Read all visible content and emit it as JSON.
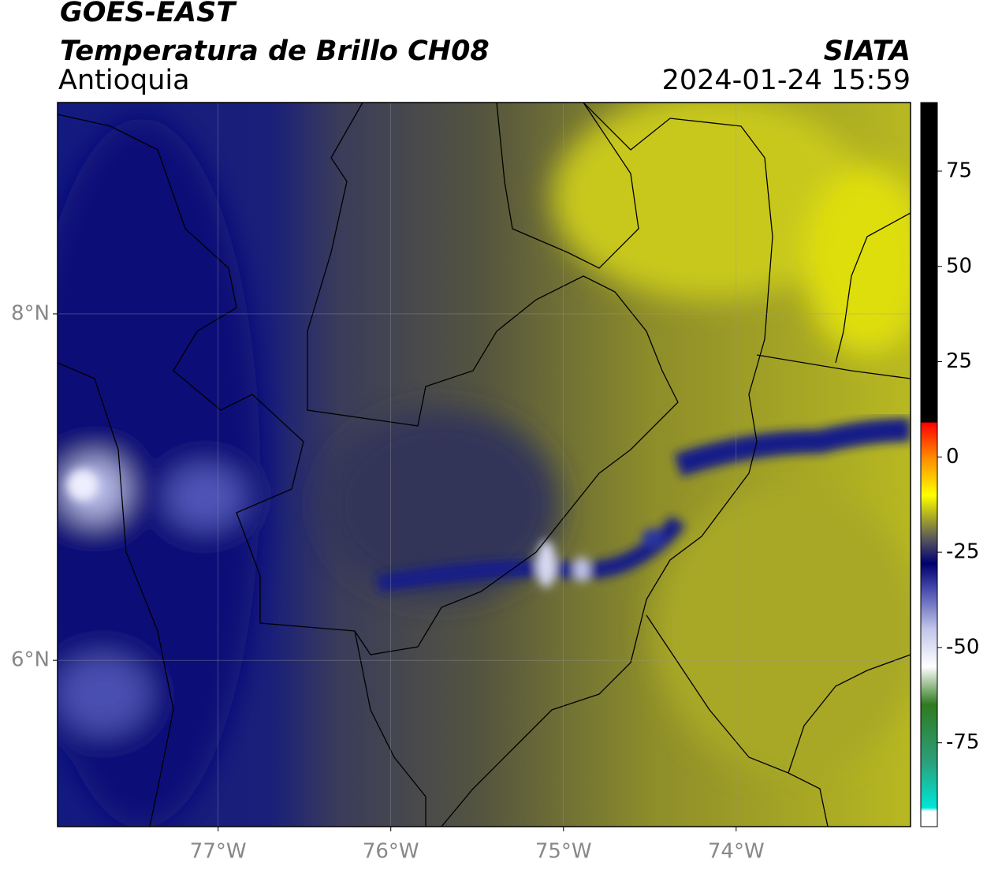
{
  "header": {
    "title": "GOES-EAST",
    "subtitle": "Temperatura de Brillo CH08",
    "region": "Antioquia",
    "source": "SIATA",
    "datetime": "2024-01-24 15:59"
  },
  "map": {
    "lonlim": [
      -77.93,
      -72.99
    ],
    "latlim": [
      5.04,
      9.22
    ],
    "lon_ticks": [
      {
        "value": -77,
        "label": "77°W"
      },
      {
        "value": -76,
        "label": "76°W"
      },
      {
        "value": -75,
        "label": "75°W"
      },
      {
        "value": -74,
        "label": "74°W"
      }
    ],
    "lat_ticks": [
      {
        "value": 8,
        "label": "8°N"
      },
      {
        "value": 6,
        "label": "6°N"
      }
    ],
    "grid": true
  },
  "colorbar": {
    "lim": [
      -97,
      93
    ],
    "ticks": [
      75,
      50,
      25,
      0,
      -25,
      -50,
      -75
    ],
    "colormap": [
      {
        "value": -97,
        "color": "#ffffff"
      },
      {
        "value": -93,
        "color": "#ffffff"
      },
      {
        "value": -92,
        "color": "#00e5d8"
      },
      {
        "value": -80,
        "color": "#2ca07a"
      },
      {
        "value": -65,
        "color": "#2f7a1f"
      },
      {
        "value": -55,
        "color": "#ffffff"
      },
      {
        "value": -45,
        "color": "#c0c4e8"
      },
      {
        "value": -35,
        "color": "#4a4fb0"
      },
      {
        "value": -28,
        "color": "#00006e"
      },
      {
        "value": -22,
        "color": "#505060"
      },
      {
        "value": -15,
        "color": "#b5b520"
      },
      {
        "value": -10,
        "color": "#ffff00"
      },
      {
        "value": 0,
        "color": "#ff8800"
      },
      {
        "value": 9,
        "color": "#ff0000"
      },
      {
        "value": 9.1,
        "color": "#000000"
      },
      {
        "value": 93,
        "color": "#000000"
      }
    ]
  }
}
